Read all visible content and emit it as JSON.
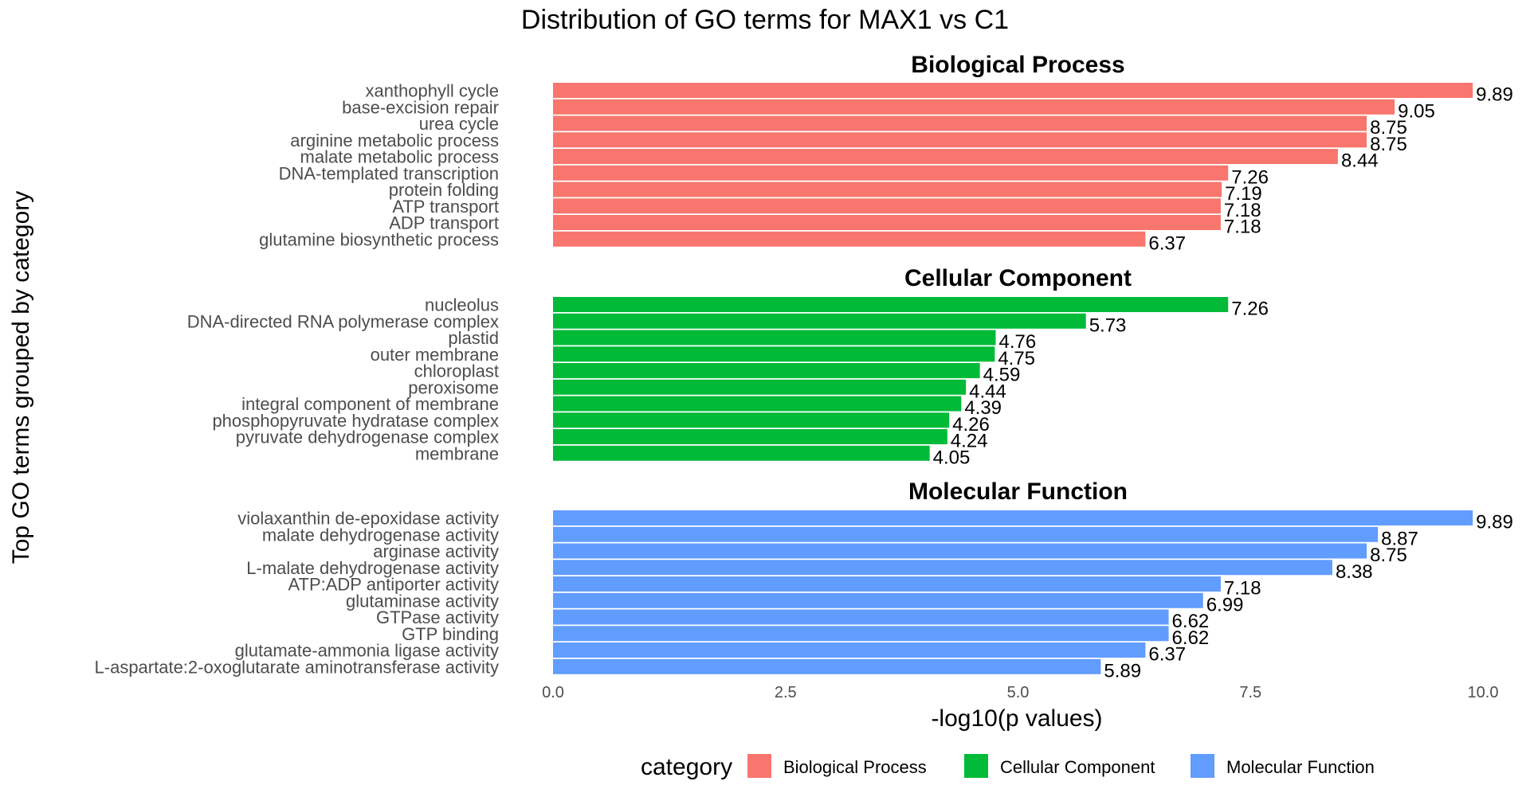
{
  "chart_data": {
    "type": "bar",
    "orientation": "horizontal",
    "title": "Distribution of GO terms for MAX1 vs C1",
    "xlabel": "-log10(p values)",
    "ylabel": "Top GO terms grouped by category",
    "xlim": [
      0,
      10
    ],
    "x_ticks": [
      "0.0",
      "2.5",
      "5.0",
      "7.5",
      "10.0"
    ],
    "grid": false,
    "legend": {
      "title": "category",
      "position": "bottom",
      "entries": [
        "Biological Process",
        "Cellular Component",
        "Molecular Function"
      ]
    },
    "panels": [
      {
        "name": "Biological Process",
        "color": "#F8766D",
        "categories": [
          "xanthophyll cycle",
          "base-excision repair",
          "urea cycle",
          "arginine metabolic process",
          "malate metabolic process",
          "DNA-templated transcription",
          "protein folding",
          "ATP transport",
          "ADP transport",
          "glutamine biosynthetic process"
        ],
        "values": [
          9.89,
          9.05,
          8.75,
          8.75,
          8.44,
          7.26,
          7.19,
          7.18,
          7.18,
          6.37
        ],
        "labels": [
          "9.89",
          "9.05",
          "8.75",
          "8.75",
          "8.44",
          "7.26",
          "7.19",
          "7.18",
          "7.18",
          "6.37"
        ]
      },
      {
        "name": "Cellular Component",
        "color": "#00BA38",
        "categories": [
          "nucleolus",
          "DNA-directed RNA polymerase complex",
          "plastid",
          "outer membrane",
          "chloroplast",
          "peroxisome",
          "integral component of membrane",
          "phosphopyruvate hydratase complex",
          "pyruvate dehydrogenase complex",
          "membrane"
        ],
        "values": [
          7.26,
          5.73,
          4.76,
          4.75,
          4.59,
          4.44,
          4.39,
          4.26,
          4.24,
          4.05
        ],
        "labels": [
          "7.26",
          "5.73",
          "4.76",
          "4.75",
          "4.59",
          "4.44",
          "4.39",
          "4.26",
          "4.24",
          "4.05"
        ]
      },
      {
        "name": "Molecular Function",
        "color": "#619CFF",
        "categories": [
          "violaxanthin de-epoxidase activity",
          "malate dehydrogenase activity",
          "arginase activity",
          "L-malate dehydrogenase activity",
          "ATP:ADP antiporter activity",
          "glutaminase activity",
          "GTPase activity",
          "GTP binding",
          "glutamate-ammonia ligase activity",
          "L-aspartate:2-oxoglutarate aminotransferase activity"
        ],
        "values": [
          9.89,
          8.87,
          8.75,
          8.38,
          7.18,
          6.99,
          6.62,
          6.62,
          6.37,
          5.89
        ],
        "labels": [
          "9.89",
          "8.87",
          "8.75",
          "8.38",
          "7.18",
          "6.99",
          "6.62",
          "6.62",
          "6.37",
          "5.89"
        ]
      }
    ]
  }
}
